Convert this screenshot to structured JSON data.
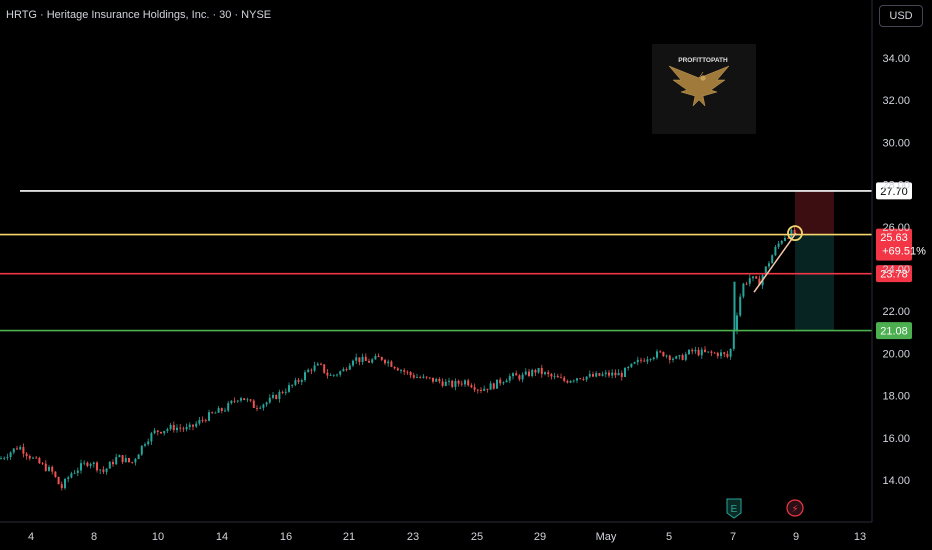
{
  "header": {
    "title": "HRTG · Heritage Insurance Holdings, Inc. · 30 · NYSE",
    "currency": "USD"
  },
  "watermark": {
    "text": "PROFITTOPATH",
    "icon": "eagle-icon"
  },
  "events": [
    {
      "label": "E",
      "icon": "earnings-icon",
      "x_label": "7"
    },
    {
      "label": "⚡",
      "icon": "lightning-icon",
      "x_label": "9"
    }
  ],
  "colors": {
    "background": "#000000",
    "up_candle": "#26a69a",
    "down_candle": "#ef5350",
    "white_line": "#ffffff",
    "yellow_line": "#f5d76e",
    "red_line": "#f23645",
    "green_line": "#4caf50",
    "price_badge": "#f23645"
  },
  "chart_data": {
    "type": "candlestick",
    "y_axis": {
      "ticks": [
        "14.00",
        "16.00",
        "18.00",
        "20.00",
        "22.00",
        "24.00",
        "26.00",
        "28.00",
        "30.00",
        "32.00",
        "34.00"
      ],
      "range": [
        13,
        35.3
      ],
      "side": "right"
    },
    "x_axis": {
      "ticks": [
        "4",
        "8",
        "10",
        "14",
        "16",
        "21",
        "23",
        "25",
        "29",
        "May",
        "5",
        "7",
        "9",
        "13"
      ]
    },
    "horizontal_levels": [
      {
        "value": 27.7,
        "label": "27.70",
        "color": "#ffffff"
      },
      {
        "value": 25.63,
        "label": "25.63",
        "color": "#f5d76e"
      },
      {
        "value": 23.78,
        "label": "23.78",
        "color": "#f23645"
      },
      {
        "value": 21.08,
        "label": "21.08",
        "color": "#4caf50"
      }
    ],
    "last_price": {
      "value": 25.63,
      "label": "25.63",
      "change": "+69.51%"
    },
    "position": {
      "entry": 25.63,
      "stop": 27.7,
      "target": 21.08
    },
    "price_path": [
      [
        0,
        15.0
      ],
      [
        0.8,
        15.6
      ],
      [
        1.5,
        14.9
      ],
      [
        2.2,
        14.4
      ],
      [
        2.6,
        13.6
      ],
      [
        3.0,
        14.3
      ],
      [
        3.8,
        14.9
      ],
      [
        4.4,
        14.4
      ],
      [
        5.0,
        15.1
      ],
      [
        5.6,
        14.8
      ],
      [
        6.2,
        15.9
      ],
      [
        6.6,
        16.3
      ],
      [
        7.4,
        16.5
      ],
      [
        8.0,
        16.4
      ],
      [
        8.8,
        17.0
      ],
      [
        9.6,
        17.4
      ],
      [
        10.2,
        18.0
      ],
      [
        10.8,
        17.5
      ],
      [
        11.4,
        17.7
      ],
      [
        12.0,
        18.2
      ],
      [
        12.6,
        18.6
      ],
      [
        13.2,
        19.3
      ],
      [
        13.6,
        19.4
      ],
      [
        14.0,
        18.9
      ],
      [
        14.6,
        19.2
      ],
      [
        15.0,
        19.8
      ],
      [
        15.6,
        19.6
      ],
      [
        16.2,
        19.8
      ],
      [
        16.8,
        19.4
      ],
      [
        17.4,
        19.0
      ],
      [
        18.0,
        18.8
      ],
      [
        18.6,
        18.7
      ],
      [
        19.2,
        18.5
      ],
      [
        19.8,
        18.7
      ],
      [
        20.4,
        18.3
      ],
      [
        21.0,
        18.5
      ],
      [
        21.6,
        18.9
      ],
      [
        22.2,
        18.9
      ],
      [
        22.8,
        19.2
      ],
      [
        23.4,
        18.9
      ],
      [
        24.0,
        18.7
      ],
      [
        24.6,
        18.9
      ],
      [
        25.2,
        18.9
      ],
      [
        25.8,
        19.0
      ],
      [
        26.4,
        19.0
      ],
      [
        27.0,
        19.5
      ],
      [
        27.6,
        19.9
      ],
      [
        28.2,
        20.0
      ],
      [
        28.8,
        19.7
      ],
      [
        29.4,
        20.1
      ],
      [
        30.0,
        20.0
      ],
      [
        30.6,
        20.0
      ],
      [
        31.0,
        19.8
      ],
      [
        31.2,
        21.2
      ],
      [
        31.6,
        23.2
      ],
      [
        32.0,
        23.6
      ],
      [
        32.4,
        23.3
      ],
      [
        32.8,
        24.1
      ],
      [
        33.2,
        24.9
      ],
      [
        33.6,
        25.5
      ],
      [
        34.0,
        25.7
      ],
      [
        34.2,
        25.63
      ]
    ]
  }
}
